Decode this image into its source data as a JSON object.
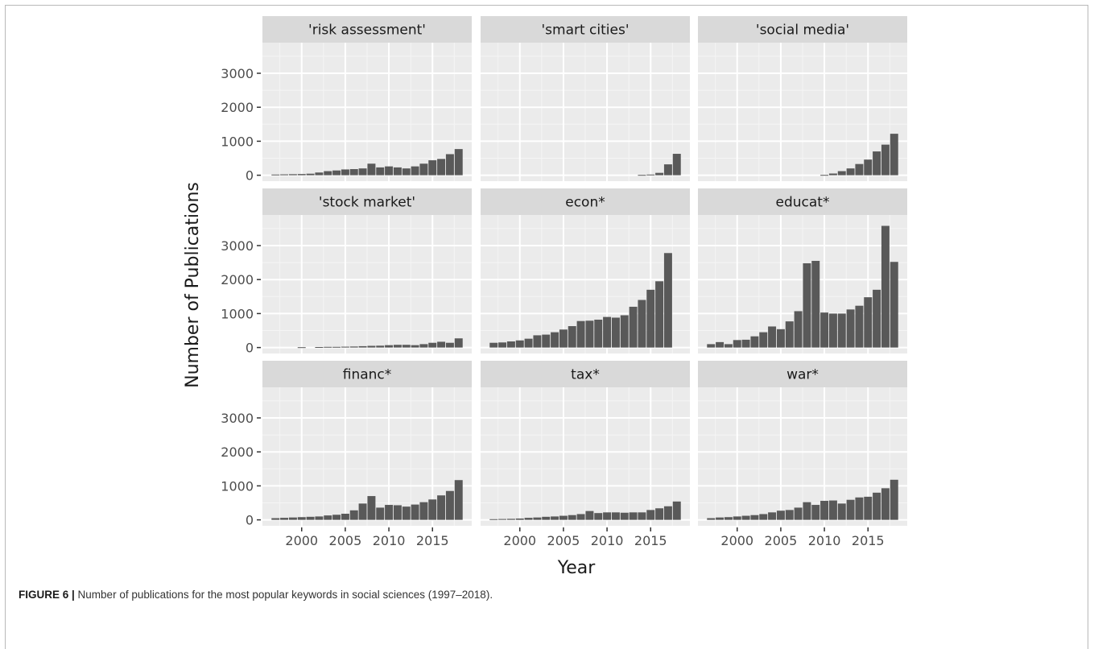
{
  "caption": {
    "label": "FIGURE 6 |",
    "text": " Number of publications for the most popular keywords in social sciences (1997–2018)."
  },
  "chart_data": {
    "type": "bar",
    "layout": "facet_grid_3x3",
    "xlabel": "Year",
    "ylabel": "Number of Publications",
    "x": [
      1997,
      1998,
      1999,
      2000,
      2001,
      2002,
      2003,
      2004,
      2005,
      2006,
      2007,
      2008,
      2009,
      2010,
      2011,
      2012,
      2013,
      2014,
      2015,
      2016,
      2017,
      2018
    ],
    "xlim": [
      1995.5,
      2019.5
    ],
    "ylim": [
      -175,
      3900
    ],
    "xticks": [
      2000,
      2005,
      2010,
      2015
    ],
    "yticks": [
      0,
      1000,
      2000,
      3000
    ],
    "grid": true,
    "bar_color": "#595959",
    "panel_bg": "#ebebeb",
    "strip_bg": "#d9d9d9",
    "series": [
      {
        "name": "'risk assessment'",
        "values": [
          20,
          25,
          30,
          35,
          45,
          80,
          120,
          140,
          170,
          180,
          200,
          340,
          230,
          260,
          230,
          200,
          260,
          340,
          440,
          480,
          620,
          770
        ]
      },
      {
        "name": "'smart cities'",
        "values": [
          0,
          0,
          0,
          0,
          0,
          0,
          0,
          0,
          0,
          0,
          0,
          0,
          0,
          0,
          0,
          0,
          0,
          10,
          20,
          70,
          320,
          630
        ]
      },
      {
        "name": "'social media'",
        "values": [
          0,
          0,
          0,
          0,
          0,
          0,
          0,
          0,
          0,
          0,
          0,
          0,
          0,
          10,
          50,
          120,
          200,
          330,
          460,
          700,
          900,
          1220
        ]
      },
      {
        "name": "'stock market'",
        "values": [
          0,
          0,
          0,
          10,
          0,
          15,
          20,
          20,
          25,
          30,
          40,
          50,
          55,
          70,
          80,
          80,
          70,
          100,
          140,
          170,
          140,
          270
        ]
      },
      {
        "name": "econ*",
        "values": [
          140,
          150,
          180,
          210,
          260,
          360,
          380,
          450,
          530,
          630,
          780,
          790,
          820,
          900,
          880,
          950,
          1200,
          1400,
          1700,
          1950,
          2780,
          0
        ]
      },
      {
        "name": "educat*",
        "values": [
          100,
          160,
          100,
          220,
          230,
          330,
          450,
          620,
          540,
          770,
          1070,
          2480,
          2550,
          1030,
          1000,
          1000,
          1120,
          1230,
          1480,
          1700,
          3580,
          2520
        ]
      },
      {
        "name": "financ*",
        "values": [
          50,
          60,
          70,
          80,
          90,
          100,
          130,
          150,
          180,
          280,
          480,
          700,
          360,
          440,
          430,
          390,
          450,
          520,
          600,
          720,
          850,
          1170
        ]
      },
      {
        "name": "tax*",
        "values": [
          20,
          25,
          30,
          40,
          60,
          70,
          90,
          100,
          120,
          140,
          170,
          260,
          200,
          220,
          220,
          210,
          220,
          220,
          290,
          340,
          400,
          540
        ]
      },
      {
        "name": "war*",
        "values": [
          50,
          70,
          80,
          100,
          120,
          140,
          170,
          220,
          270,
          290,
          360,
          520,
          440,
          560,
          570,
          480,
          590,
          660,
          680,
          800,
          930,
          1180
        ]
      }
    ]
  }
}
